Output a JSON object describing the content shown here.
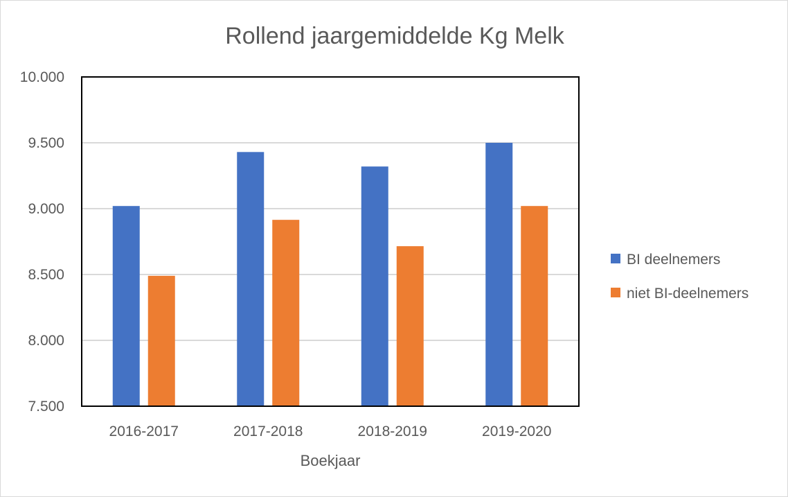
{
  "chart_data": {
    "type": "bar",
    "title": "Rollend jaargemiddelde Kg Melk",
    "xlabel": "Boekjaar",
    "ylabel": "",
    "categories": [
      "2016-2017",
      "2017-2018",
      "2018-2019",
      "2019-2020"
    ],
    "series": [
      {
        "name": "BI deelnemers",
        "values": [
          9020,
          9430,
          9320,
          9500
        ],
        "color": "#4472c4"
      },
      {
        "name": "niet BI-deelnemers",
        "values": [
          8490,
          8915,
          8715,
          9020
        ],
        "color": "#ed7d31"
      }
    ],
    "ylim": [
      7500,
      10000
    ],
    "yticks": [
      7500,
      8000,
      8500,
      9000,
      9500,
      10000
    ],
    "ytick_labels": [
      "7.500",
      "8.000",
      "8.500",
      "9.000",
      "9.500",
      "10.000"
    ],
    "grid": true,
    "legend_position": "right"
  },
  "colors": {
    "text": "#595959",
    "gridline": "#d9d9d9",
    "plot_border": "#000000"
  }
}
